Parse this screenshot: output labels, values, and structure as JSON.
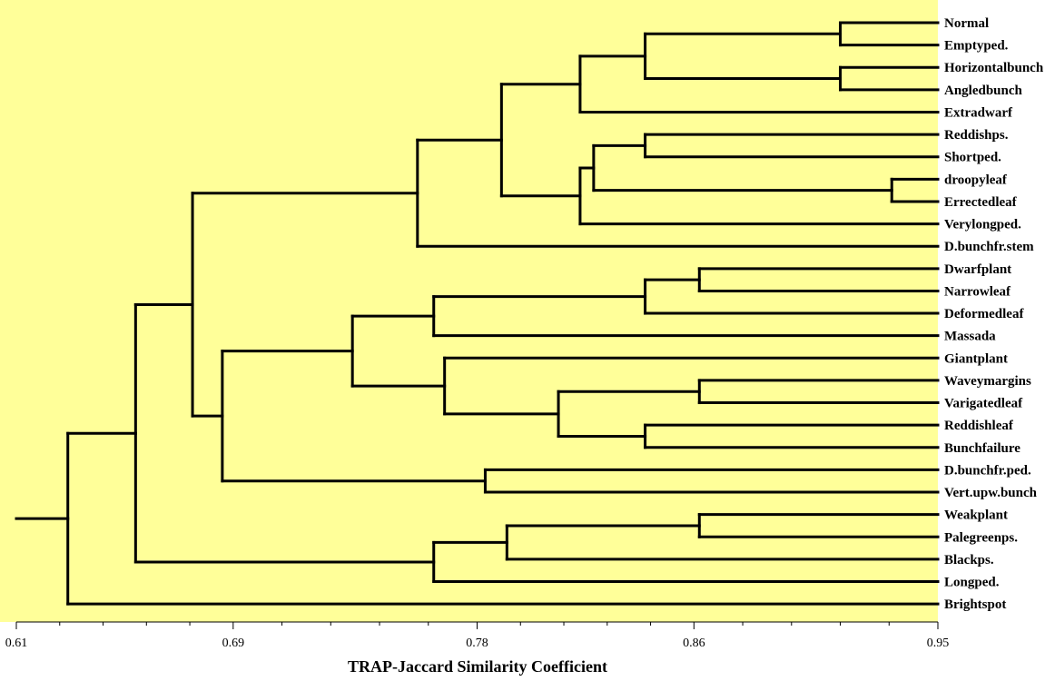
{
  "chart_data": {
    "type": "dendrogram",
    "xlabel": "TRAP-Jaccard Similarity Coefficient",
    "xlim": [
      0.61,
      0.95
    ],
    "ticks": [
      "0.61",
      "0.69",
      "0.78",
      "0.86",
      "0.95"
    ],
    "background_color": "#ffff99",
    "line_color": "#000000",
    "leaves": [
      "Normal",
      "Emptyped.",
      "Horizontalbunch",
      "Angledbunch",
      "Extradwarf",
      "Reddishps.",
      "Shortped.",
      "droopyleaf",
      "Errectedleaf",
      "Verylongped.",
      "D.bunchfr.stem",
      "Dwarfplant",
      "Narrowleaf",
      "Deformedleaf",
      "Massada",
      "Giantplant",
      "Waveymargins",
      "Varigatedleaf",
      "Reddishleaf",
      "Bunchfailure",
      "D.bunchfr.ped.",
      "Vert.upw.bunch",
      "Weakplant",
      "Palegreenps.",
      "Blackps.",
      "Longped.",
      "Brightspot"
    ],
    "merges": [
      {
        "a": 0,
        "b": 1,
        "similarity": 0.914
      },
      {
        "a": 2,
        "b": 3,
        "similarity": 0.914
      },
      {
        "a": 27,
        "b": 28,
        "similarity": 0.842
      },
      {
        "a": 29,
        "b": 4,
        "similarity": 0.818
      },
      {
        "a": 5,
        "b": 6,
        "similarity": 0.842
      },
      {
        "a": 7,
        "b": 8,
        "similarity": 0.933
      },
      {
        "a": 31,
        "b": 32,
        "similarity": 0.823
      },
      {
        "a": 33,
        "b": 9,
        "similarity": 0.818
      },
      {
        "a": 30,
        "b": 34,
        "similarity": 0.789
      },
      {
        "a": 35,
        "b": 10,
        "similarity": 0.758
      },
      {
        "a": 11,
        "b": 12,
        "similarity": 0.862
      },
      {
        "a": 37,
        "b": 13,
        "similarity": 0.842
      },
      {
        "a": 38,
        "b": 14,
        "similarity": 0.764
      },
      {
        "a": 16,
        "b": 17,
        "similarity": 0.862
      },
      {
        "a": 18,
        "b": 19,
        "similarity": 0.842
      },
      {
        "a": 40,
        "b": 41,
        "similarity": 0.81
      },
      {
        "a": 15,
        "b": 42,
        "similarity": 0.768
      },
      {
        "a": 39,
        "b": 43,
        "similarity": 0.734
      },
      {
        "a": 20,
        "b": 21,
        "similarity": 0.783
      },
      {
        "a": 44,
        "b": 45,
        "similarity": 0.686
      },
      {
        "a": 36,
        "b": 46,
        "similarity": 0.675
      },
      {
        "a": 22,
        "b": 23,
        "similarity": 0.862
      },
      {
        "a": 48,
        "b": 24,
        "similarity": 0.791
      },
      {
        "a": 49,
        "b": 25,
        "similarity": 0.764
      },
      {
        "a": 47,
        "b": 50,
        "similarity": 0.654
      },
      {
        "a": 51,
        "b": 26,
        "similarity": 0.629
      }
    ],
    "root_similarity": 0.61
  }
}
